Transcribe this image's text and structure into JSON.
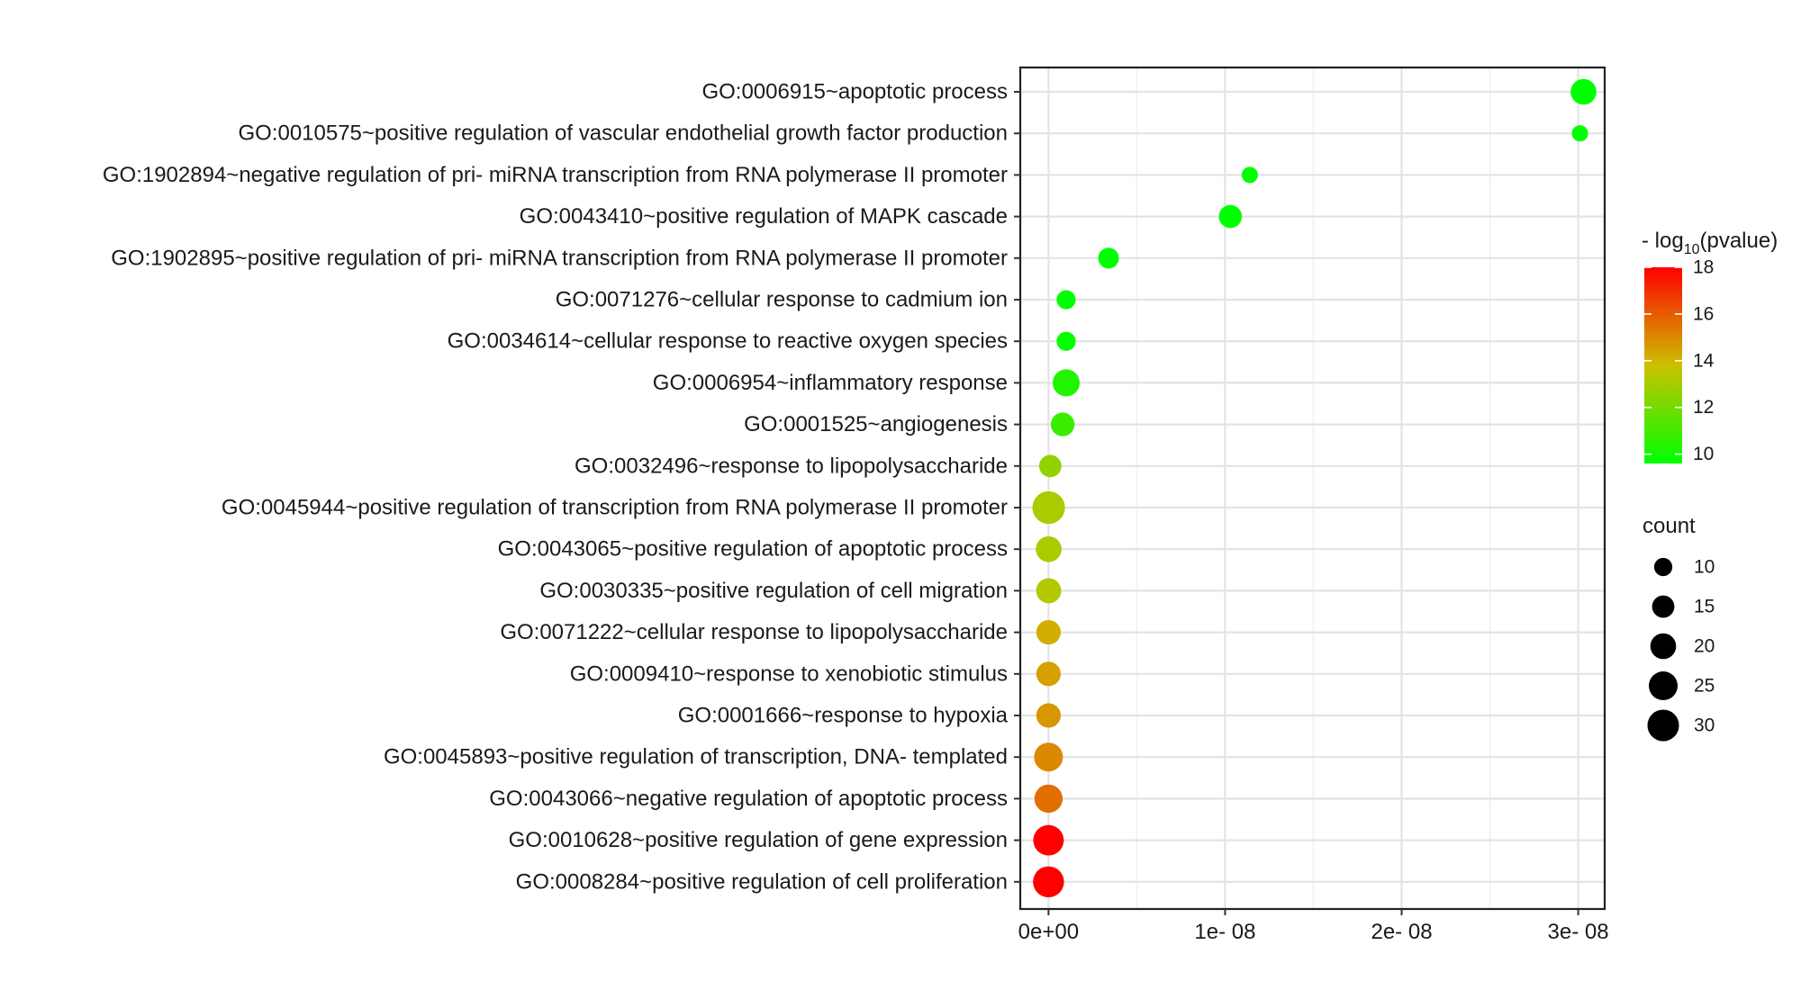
{
  "chart_data": {
    "type": "scatter",
    "xlabel": "",
    "ylabel": "",
    "xlim": [
      -1.6e-09,
      3.15e-08
    ],
    "x_ticks": [
      {
        "value": 0,
        "label": "0e+00"
      },
      {
        "value": 1e-08,
        "label": "1e- 08"
      },
      {
        "value": 2e-08,
        "label": "2e- 08"
      },
      {
        "value": 3e-08,
        "label": "3e- 08"
      }
    ],
    "grid": true,
    "categories": [
      "GO:0006915~apoptotic process",
      "GO:0010575~positive regulation of vascular endothelial growth factor production",
      "GO:1902894~negative regulation of pri- miRNA transcription from RNA polymerase II promoter",
      "GO:0043410~positive regulation of MAPK cascade",
      "GO:1902895~positive regulation of pri- miRNA transcription from RNA polymerase II promoter",
      "GO:0071276~cellular response to cadmium ion",
      "GO:0034614~cellular response to reactive oxygen species",
      "GO:0006954~inflammatory response",
      "GO:0001525~angiogenesis",
      "GO:0032496~response to lipopolysaccharide",
      "GO:0045944~positive regulation of transcription from RNA polymerase II promoter",
      "GO:0043065~positive regulation of apoptotic process",
      "GO:0030335~positive regulation of cell migration",
      "GO:0071222~cellular response to lipopolysaccharide",
      "GO:0009410~response to xenobiotic stimulus",
      "GO:0001666~response to hypoxia",
      "GO:0045893~positive regulation of transcription, DNA- templated",
      "GO:0043066~negative regulation of apoptotic process",
      "GO:0010628~positive regulation of gene expression",
      "GO:0008284~positive regulation of cell proliferation"
    ],
    "points": [
      {
        "pvalue": 3.03e-08,
        "neglog10p": 7.5,
        "count": 20
      },
      {
        "pvalue": 3.01e-08,
        "neglog10p": 7.5,
        "count": 8
      },
      {
        "pvalue": 1.14e-08,
        "neglog10p": 7.9,
        "count": 8
      },
      {
        "pvalue": 1.03e-08,
        "neglog10p": 8.0,
        "count": 16
      },
      {
        "pvalue": 3.4e-09,
        "neglog10p": 8.5,
        "count": 13
      },
      {
        "pvalue": 1e-09,
        "neglog10p": 9.6,
        "count": 11
      },
      {
        "pvalue": 1e-09,
        "neglog10p": 9.7,
        "count": 11
      },
      {
        "pvalue": 1e-09,
        "neglog10p": 10.3,
        "count": 22
      },
      {
        "pvalue": 8e-10,
        "neglog10p": 10.8,
        "count": 17
      },
      {
        "pvalue": 1e-10,
        "neglog10p": 12.6,
        "count": 15
      },
      {
        "pvalue": 1e-11,
        "neglog10p": 13.1,
        "count": 32
      },
      {
        "pvalue": 1e-11,
        "neglog10p": 13.1,
        "count": 20
      },
      {
        "pvalue": 1e-11,
        "neglog10p": 13.3,
        "count": 19
      },
      {
        "pvalue": 1e-12,
        "neglog10p": 14.2,
        "count": 18
      },
      {
        "pvalue": 1e-12,
        "neglog10p": 14.5,
        "count": 18
      },
      {
        "pvalue": 1e-12,
        "neglog10p": 14.7,
        "count": 18
      },
      {
        "pvalue": 1e-13,
        "neglog10p": 15.0,
        "count": 25
      },
      {
        "pvalue": 1e-13,
        "neglog10p": 15.6,
        "count": 24
      },
      {
        "pvalue": 1e-18,
        "neglog10p": 18.0,
        "count": 28
      },
      {
        "pvalue": 1e-18,
        "neglog10p": 18.0,
        "count": 29
      }
    ],
    "color_legend": {
      "title_pre": "- log",
      "title_sub": "10",
      "title_post": "(pvalue)",
      "range": [
        9.6,
        18
      ],
      "ticks": [
        {
          "value": 10,
          "label": "10"
        },
        {
          "value": 12,
          "label": "12"
        },
        {
          "value": 14,
          "label": "14"
        },
        {
          "value": 16,
          "label": "16"
        },
        {
          "value": 18,
          "label": "18"
        }
      ],
      "colors": {
        "low": "#00ff00",
        "mid": "#ccc000",
        "high": "#ff0000"
      }
    },
    "size_legend": {
      "title": "count",
      "items": [
        {
          "value": 10,
          "label": "10"
        },
        {
          "value": 15,
          "label": "15"
        },
        {
          "value": 20,
          "label": "20"
        },
        {
          "value": 25,
          "label": "25"
        },
        {
          "value": 30,
          "label": "30"
        }
      ]
    },
    "legend_position": "right"
  }
}
